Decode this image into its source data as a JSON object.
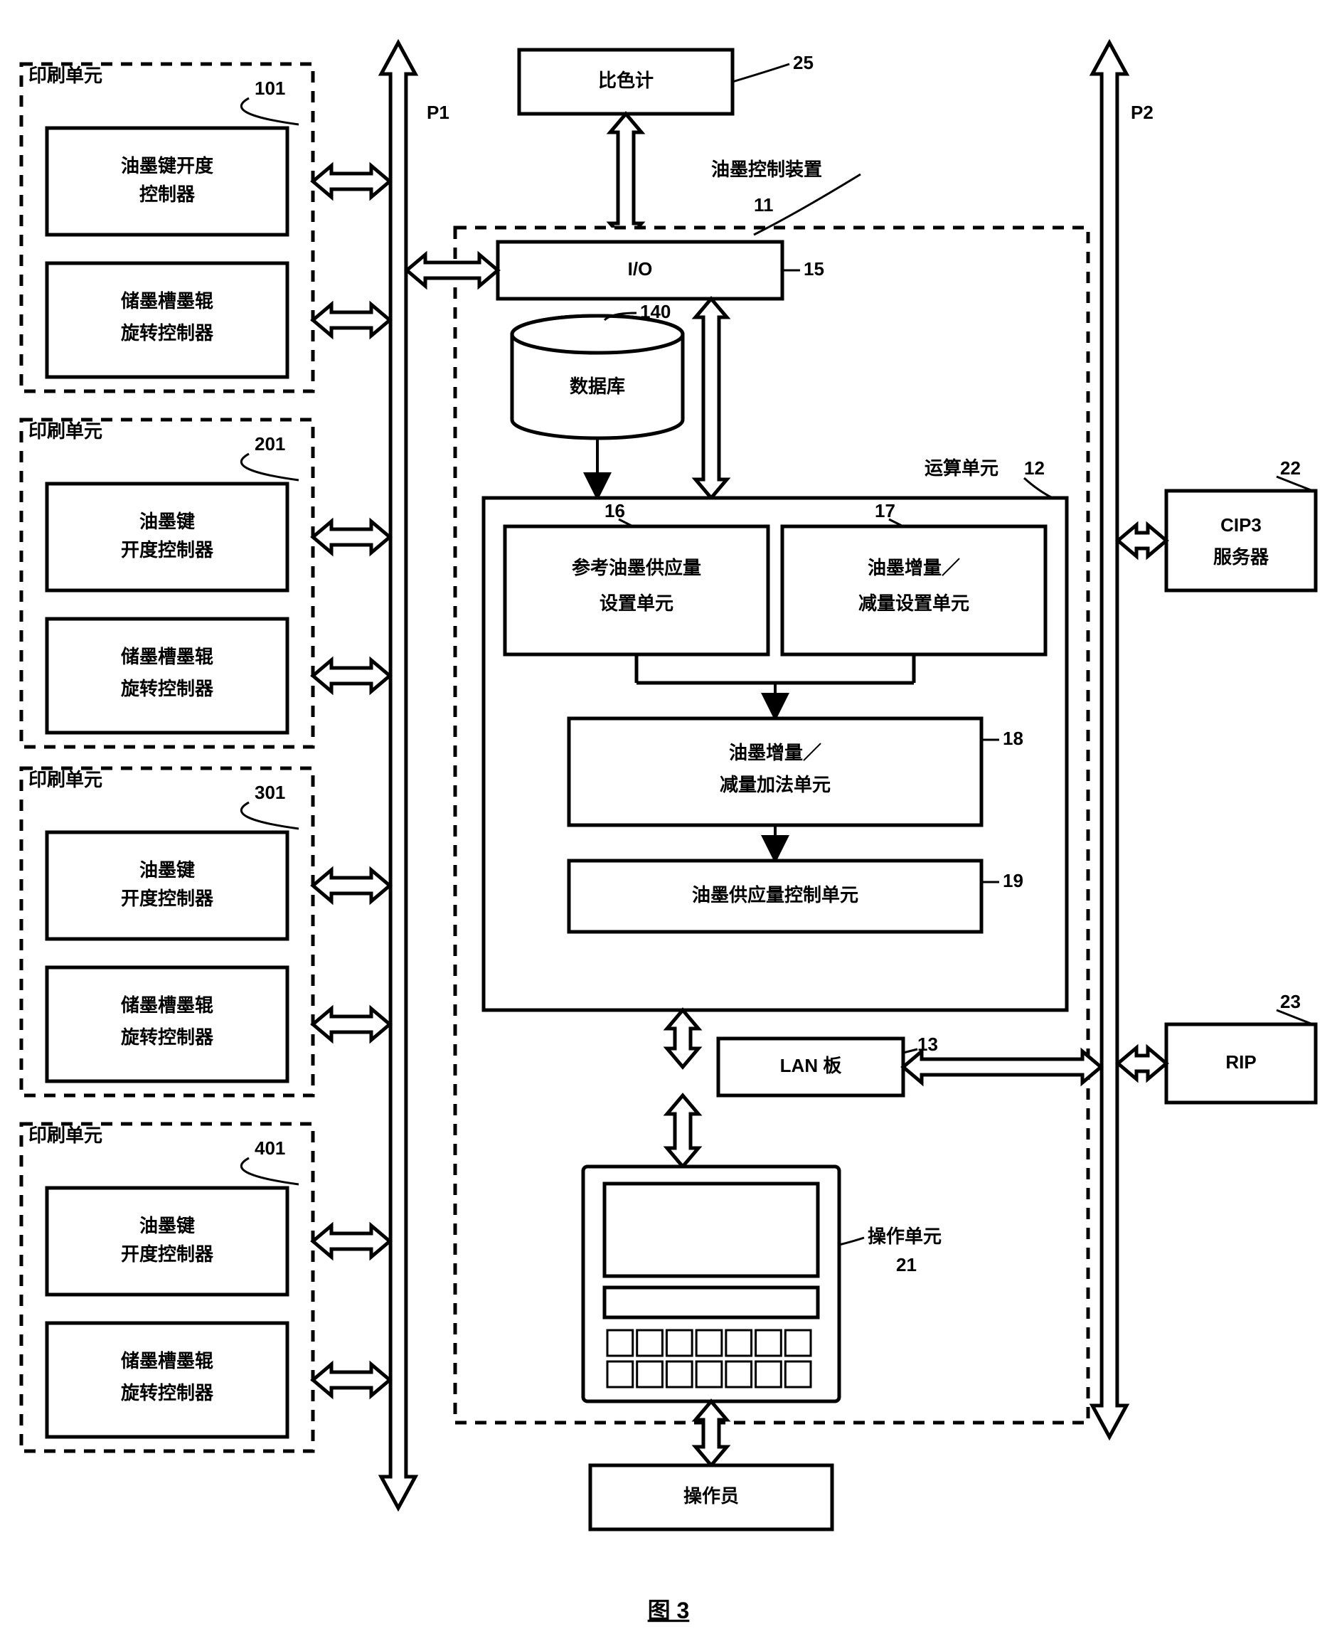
{
  "figure_label": "图 3",
  "print_units": {
    "label": "印刷单元",
    "items": [
      {
        "id": "101",
        "ctrl1": "油墨键开度",
        "ctrl1b": "控制器",
        "ctrl2": "储墨槽墨辊",
        "ctrl2b": "旋转控制器"
      },
      {
        "id": "201",
        "ctrl1": "油墨键",
        "ctrl1b": "开度控制器",
        "ctrl2": "储墨槽墨辊",
        "ctrl2b": "旋转控制器"
      },
      {
        "id": "301",
        "ctrl1": "油墨键",
        "ctrl1b": "开度控制器",
        "ctrl2": "储墨槽墨辊",
        "ctrl2b": "旋转控制器"
      },
      {
        "id": "401",
        "ctrl1": "油墨键",
        "ctrl1b": "开度控制器",
        "ctrl2": "储墨槽墨辊",
        "ctrl2b": "旋转控制器"
      }
    ]
  },
  "bus_labels": {
    "p1": "P1",
    "p2": "P2"
  },
  "colorimeter": {
    "label": "比色计",
    "id": "25"
  },
  "ink_control_device": {
    "label": "油墨控制装置",
    "id": "11"
  },
  "io": {
    "label": "I/O",
    "id": "15"
  },
  "database": {
    "label": "数据库",
    "id": "140"
  },
  "calc_unit": {
    "label": "运算单元",
    "id": "12"
  },
  "ref_unit": {
    "id": "16",
    "line1": "参考油墨供应量",
    "line2": "设置单元"
  },
  "incdec_unit": {
    "id": "17",
    "line1": "油墨增量／",
    "line2": "减量设置单元"
  },
  "add_unit": {
    "id": "18",
    "line1": "油墨增量／",
    "line2": "减量加法单元"
  },
  "supply_unit": {
    "id": "19",
    "label": "油墨供应量控制单元"
  },
  "lan": {
    "label": "LAN 板",
    "id": "13"
  },
  "op_unit": {
    "label": "操作单元",
    "id": "21"
  },
  "operator": {
    "label": "操作员"
  },
  "cip3": {
    "line1": "CIP3",
    "line2": "服务器",
    "id": "22"
  },
  "rip": {
    "label": "RIP",
    "id": "23"
  },
  "style": {
    "stroke": "#000000",
    "stroke_width": 5,
    "dash": "16 12",
    "bg": "#ffffff"
  }
}
